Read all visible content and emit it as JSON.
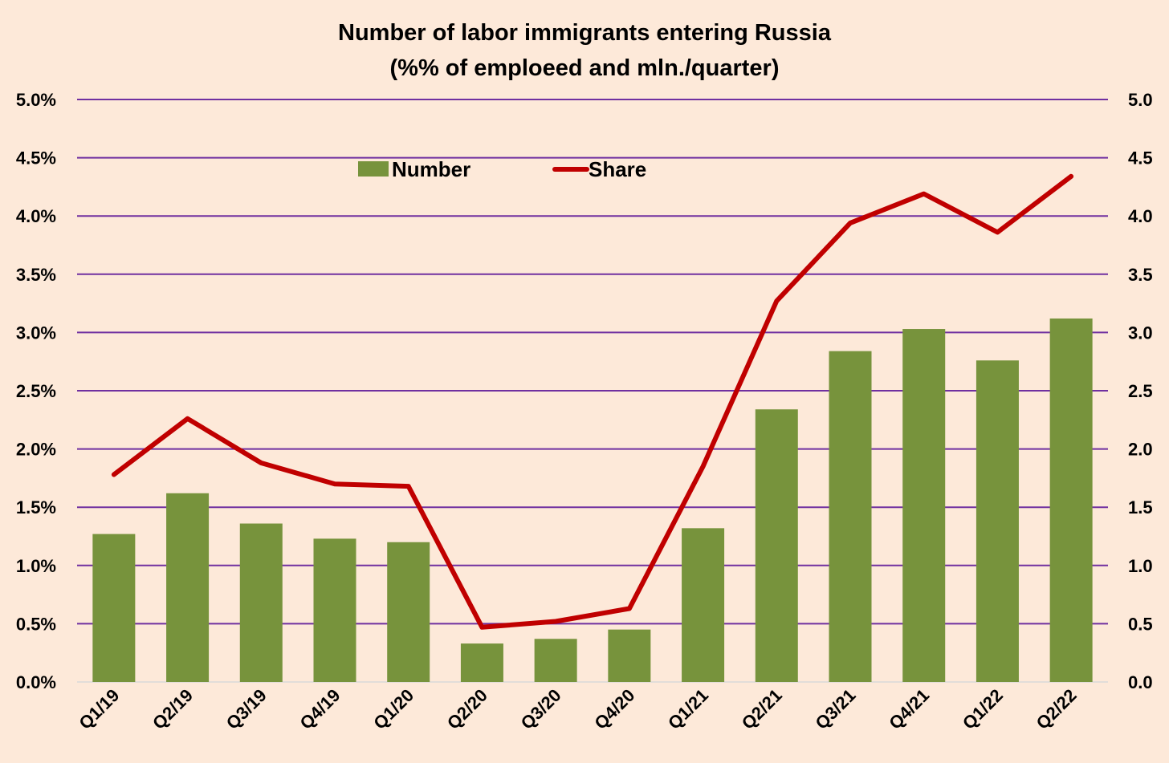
{
  "chart_data": {
    "type": "bar",
    "title": "Number of labor immigrants entering Russia",
    "subtitle": "(%% of emploeed and mln./quarter)",
    "categories": [
      "Q1/19",
      "Q2/19",
      "Q3/19",
      "Q4/19",
      "Q1/20",
      "Q2/20",
      "Q3/20",
      "Q4/20",
      "Q1/21",
      "Q2/21",
      "Q3/21",
      "Q4/21",
      "Q1/22",
      "Q2/22"
    ],
    "series": [
      {
        "name": "Number",
        "type": "bar",
        "axis": "right",
        "color": "#77933C",
        "values": [
          1.27,
          1.62,
          1.36,
          1.23,
          1.2,
          0.33,
          0.37,
          0.45,
          1.32,
          2.34,
          2.84,
          3.03,
          2.76,
          3.12
        ]
      },
      {
        "name": "Share",
        "type": "line",
        "axis": "left",
        "color": "#C00000",
        "values": [
          1.78,
          2.26,
          1.88,
          1.7,
          1.68,
          0.47,
          0.52,
          0.63,
          1.85,
          3.27,
          3.94,
          4.19,
          3.86,
          4.34
        ]
      }
    ],
    "y_left": {
      "min": 0,
      "max": 5,
      "ticks": [
        "0.0%",
        "0.5%",
        "1.0%",
        "1.5%",
        "2.0%",
        "2.5%",
        "3.0%",
        "3.5%",
        "4.0%",
        "4.5%",
        "5.0%"
      ]
    },
    "y_right": {
      "min": 0,
      "max": 5,
      "ticks": [
        "0.0",
        "0.5",
        "1.0",
        "1.5",
        "2.0",
        "2.5",
        "3.0",
        "3.5",
        "4.0",
        "4.5",
        "5.0"
      ]
    },
    "grid": true,
    "grid_color": "#7030A0",
    "legend_position": "top-center"
  }
}
